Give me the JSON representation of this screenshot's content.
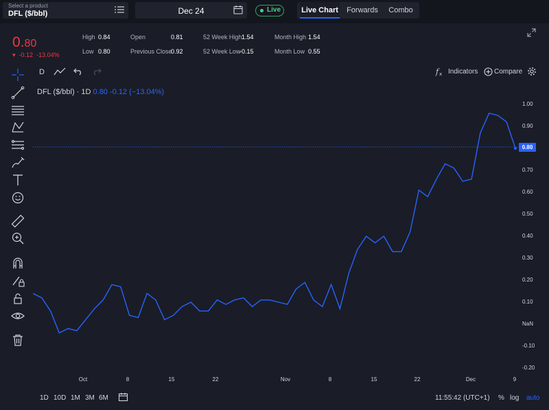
{
  "header": {
    "product_caption": "Select a product",
    "product_value": "DFL ($/bbl)",
    "date_value": "Dec 24",
    "live_label": "Live",
    "tabs": [
      {
        "label": "Live Chart",
        "active": true
      },
      {
        "label": "Forwards",
        "active": false
      },
      {
        "label": "Combo",
        "active": false
      }
    ]
  },
  "quote": {
    "price_int": "0.",
    "price_dec": "80",
    "change": "-0.12",
    "change_pct": "-13.04%",
    "stats": {
      "high_label": "High",
      "high_value": "0.84",
      "low_label": "Low",
      "low_value": "0.80",
      "open_label": "Open",
      "open_value": "0.81",
      "prev_close_label": "Previous Close",
      "prev_close_value": "0.92",
      "wk52_high_label": "52 Week High",
      "wk52_high_value": "1.54",
      "wk52_low_label": "52 Week Low",
      "wk52_low_value": "-0.15",
      "month_high_label": "Month High",
      "month_high_value": "1.54",
      "month_low_label": "Month Low",
      "month_low_value": "0.55"
    }
  },
  "chart_toolbar": {
    "interval": "D",
    "indicators_label": "Indicators",
    "compare_label": "Compare"
  },
  "legend": {
    "symbol": "DFL ($/bbl) · 1D",
    "values": "0.80 -0.12 (−13.04%)"
  },
  "bottom": {
    "timeframes": [
      "1D",
      "10D",
      "1M",
      "3M",
      "6M"
    ],
    "clock": "11:55:42 (UTC+1)",
    "pct_label": "%",
    "log_label": "log",
    "auto_label": "auto"
  },
  "icons": [
    "menu-list-icon",
    "calendar-icon",
    "live-dot-icon",
    "expand-icon",
    "crosshair-icon",
    "trend-line-icon",
    "horizontal-lines-icon",
    "pattern-icon",
    "fib-icon",
    "brush-icon",
    "text-icon",
    "emoji-icon",
    "ruler-icon",
    "zoom-in-icon",
    "magnet-icon",
    "lock-pencil-icon",
    "lock-icon",
    "eye-icon",
    "trash-icon",
    "chart-type-icon",
    "undo-icon",
    "redo-icon",
    "fx-icon",
    "plus-circle-icon",
    "settings-icon",
    "date-range-icon"
  ],
  "colors": {
    "background": "#1a1d27",
    "line": "#2962ff",
    "negative": "#f23645",
    "live": "#4cd08a"
  },
  "chart_data": {
    "type": "line",
    "title": "DFL ($/bbl) · 1D",
    "ylim": [
      -0.2,
      1.0
    ],
    "y_ticks": [
      "1.00",
      "0.90",
      "0.80",
      "0.70",
      "0.60",
      "0.50",
      "0.40",
      "0.30",
      "0.20",
      "0.10",
      "NaN",
      "-0.10",
      "-0.20"
    ],
    "x_ticks": [
      "Oct",
      "8",
      "15",
      "22",
      "Nov",
      "8",
      "15",
      "22",
      "Dec",
      "9"
    ],
    "last_value_tag": "0.80",
    "series": [
      {
        "values": [
          0.14,
          0.12,
          0.06,
          -0.04,
          -0.02,
          -0.03,
          0.02,
          0.07,
          0.11,
          0.18,
          0.17,
          0.04,
          0.03,
          0.14,
          0.11,
          0.02,
          0.04,
          0.08,
          0.1,
          0.06,
          0.06,
          0.11,
          0.09,
          0.11,
          0.12,
          0.08,
          0.11,
          0.11,
          0.1,
          0.09,
          0.16,
          0.19,
          0.11,
          0.08,
          0.18,
          0.07,
          0.23,
          0.34,
          0.4,
          0.37,
          0.4,
          0.33,
          0.33,
          0.42,
          0.61,
          0.58,
          0.66,
          0.73,
          0.71,
          0.65,
          0.66,
          0.87,
          0.96,
          0.95,
          0.92,
          0.8
        ]
      }
    ]
  }
}
